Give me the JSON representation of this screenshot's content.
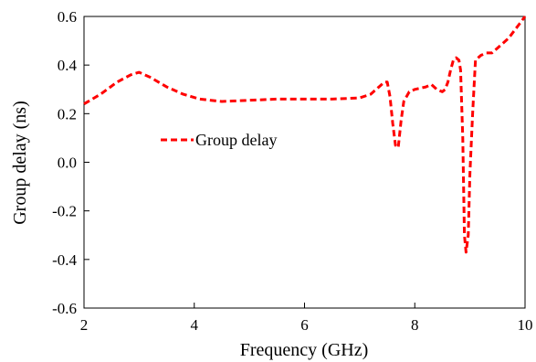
{
  "chart_data": {
    "type": "line",
    "title": "",
    "xlabel": "Frequency (GHz)",
    "ylabel": "Group delay (ns)",
    "xlim": [
      2,
      10
    ],
    "ylim": [
      -0.6,
      0.6
    ],
    "x_ticks": [
      2,
      4,
      6,
      8,
      10
    ],
    "x_tick_labels": [
      "2",
      "4",
      "6",
      "8",
      "10"
    ],
    "y_ticks": [
      -0.6,
      -0.4,
      -0.2,
      0.0,
      0.2,
      0.4,
      0.6
    ],
    "y_tick_labels": [
      "-0.6",
      "-0.4",
      "-0.2",
      "0.0",
      "0.2",
      "0.4",
      "0.6"
    ],
    "grid": false,
    "legend_position": "middle-left",
    "series": [
      {
        "name": "Group delay",
        "color": "#ff0000",
        "line_style": "dashed",
        "x": [
          2.0,
          2.3,
          2.6,
          2.85,
          3.0,
          3.2,
          3.5,
          3.8,
          4.1,
          4.5,
          5.0,
          5.5,
          6.0,
          6.5,
          7.0,
          7.2,
          7.35,
          7.45,
          7.5,
          7.55,
          7.6,
          7.65,
          7.7,
          7.75,
          7.8,
          7.9,
          8.0,
          8.2,
          8.3,
          8.4,
          8.5,
          8.55,
          8.6,
          8.65,
          8.7,
          8.75,
          8.8,
          8.83,
          8.87,
          8.9,
          8.93,
          8.97,
          9.0,
          9.05,
          9.1,
          9.2,
          9.3,
          9.4,
          9.5,
          9.7,
          9.9,
          10.0
        ],
        "y": [
          0.24,
          0.28,
          0.33,
          0.36,
          0.37,
          0.35,
          0.31,
          0.28,
          0.26,
          0.25,
          0.255,
          0.26,
          0.26,
          0.26,
          0.265,
          0.28,
          0.31,
          0.33,
          0.33,
          0.27,
          0.16,
          0.07,
          0.06,
          0.17,
          0.25,
          0.29,
          0.3,
          0.31,
          0.32,
          0.3,
          0.29,
          0.3,
          0.33,
          0.38,
          0.42,
          0.43,
          0.42,
          0.38,
          0.1,
          -0.3,
          -0.37,
          -0.3,
          -0.05,
          0.2,
          0.42,
          0.44,
          0.45,
          0.45,
          0.47,
          0.51,
          0.57,
          0.6
        ]
      }
    ]
  }
}
